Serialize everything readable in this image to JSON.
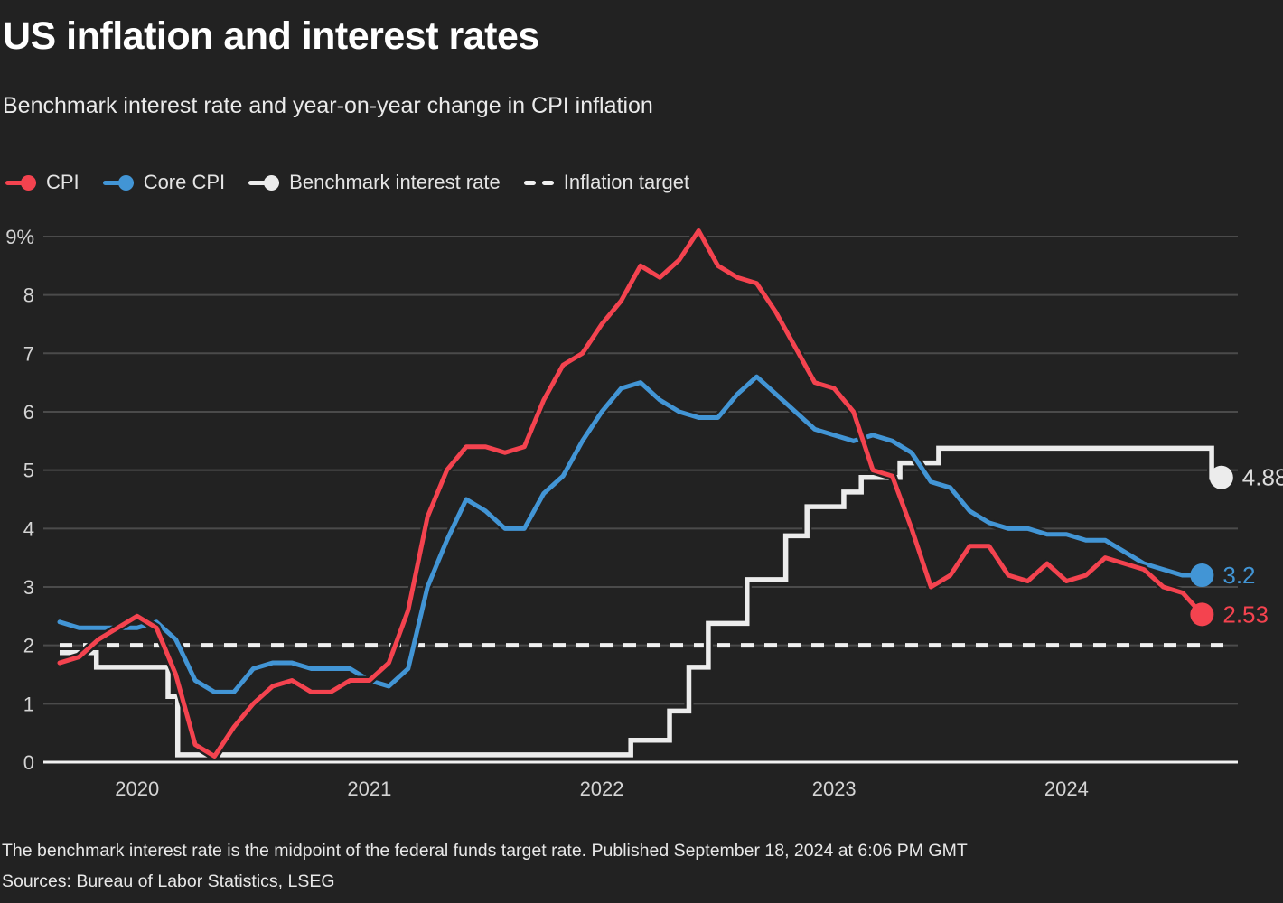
{
  "chart_data": {
    "type": "line",
    "title": "US inflation and interest rates",
    "subtitle": "Benchmark interest rate and year-on-year change in CPI inflation",
    "x_unit": "month",
    "x_range": [
      "Sep 2019",
      "Sep 2024"
    ],
    "ylim": [
      0,
      9
    ],
    "grid": true,
    "legend_position": "top",
    "x_ticks": [
      {
        "label": "2020",
        "t": 4
      },
      {
        "label": "2021",
        "t": 16
      },
      {
        "label": "2022",
        "t": 28
      },
      {
        "label": "2023",
        "t": 40
      },
      {
        "label": "2024",
        "t": 52
      }
    ],
    "y_ticks": [
      {
        "v": 0,
        "label": "0"
      },
      {
        "v": 1,
        "label": "1"
      },
      {
        "v": 2,
        "label": "2"
      },
      {
        "v": 3,
        "label": "3"
      },
      {
        "v": 4,
        "label": "4"
      },
      {
        "v": 5,
        "label": "5"
      },
      {
        "v": 6,
        "label": "6"
      },
      {
        "v": 7,
        "label": "7"
      },
      {
        "v": 8,
        "label": "8"
      },
      {
        "v": 9,
        "label": "9%"
      }
    ],
    "legend": {
      "items": [
        {
          "label": "CPI",
          "color": "#f4434f",
          "marker": "line-dot"
        },
        {
          "label": "Core CPI",
          "color": "#4295d5",
          "marker": "line-dot"
        },
        {
          "label": "Benchmark interest rate",
          "color": "#ececec",
          "marker": "line-dot"
        },
        {
          "label": "Inflation target",
          "color": "#f0f0f0",
          "marker": "dashes"
        }
      ]
    },
    "series": [
      {
        "name": "CPI",
        "type": "monthly",
        "start": "2019-09",
        "color": "#f4434f",
        "end_label": "2.53",
        "values": [
          1.7,
          1.8,
          2.1,
          2.3,
          2.5,
          2.3,
          1.5,
          0.3,
          0.1,
          0.6,
          1.0,
          1.3,
          1.4,
          1.2,
          1.2,
          1.4,
          1.4,
          1.7,
          2.6,
          4.2,
          5.0,
          5.4,
          5.4,
          5.3,
          5.4,
          6.2,
          6.8,
          7.0,
          7.5,
          7.9,
          8.5,
          8.3,
          8.6,
          9.1,
          8.5,
          8.3,
          8.2,
          7.7,
          7.1,
          6.5,
          6.4,
          6.0,
          5.0,
          4.9,
          4.0,
          3.0,
          3.2,
          3.7,
          3.7,
          3.2,
          3.1,
          3.4,
          3.1,
          3.2,
          3.5,
          3.4,
          3.3,
          3.0,
          2.9,
          2.53
        ]
      },
      {
        "name": "Core CPI",
        "type": "monthly",
        "start": "2019-09",
        "color": "#4295d5",
        "end_label": "3.2",
        "values": [
          2.4,
          2.3,
          2.3,
          2.3,
          2.3,
          2.4,
          2.1,
          1.4,
          1.2,
          1.2,
          1.6,
          1.7,
          1.7,
          1.6,
          1.6,
          1.6,
          1.4,
          1.3,
          1.6,
          3.0,
          3.8,
          4.5,
          4.3,
          4.0,
          4.0,
          4.6,
          4.9,
          5.5,
          6.0,
          6.4,
          6.5,
          6.2,
          6.0,
          5.9,
          5.9,
          6.3,
          6.6,
          6.3,
          6.0,
          5.7,
          5.6,
          5.5,
          5.6,
          5.5,
          5.3,
          4.8,
          4.7,
          4.3,
          4.1,
          4.0,
          4.0,
          3.9,
          3.9,
          3.8,
          3.8,
          3.6,
          3.4,
          3.3,
          3.2,
          3.2
        ]
      },
      {
        "name": "Benchmark interest rate",
        "type": "step",
        "color": "#ececec",
        "end_label": "4.88",
        "t_end": 60,
        "points": [
          {
            "t": 0,
            "v": 1.875
          },
          {
            "t": 1.9,
            "v": 1.625
          },
          {
            "t": 5.6,
            "v": 1.125
          },
          {
            "t": 6.1,
            "v": 0.125
          },
          {
            "t": 29.5,
            "v": 0.375
          },
          {
            "t": 31.5,
            "v": 0.875
          },
          {
            "t": 32.5,
            "v": 1.625
          },
          {
            "t": 33.5,
            "v": 2.375
          },
          {
            "t": 35.5,
            "v": 3.125
          },
          {
            "t": 37.5,
            "v": 3.875
          },
          {
            "t": 38.6,
            "v": 4.375
          },
          {
            "t": 40.5,
            "v": 4.625
          },
          {
            "t": 41.4,
            "v": 4.875
          },
          {
            "t": 43.4,
            "v": 5.125
          },
          {
            "t": 45.4,
            "v": 5.375
          },
          {
            "t": 59.5,
            "v": 4.875
          }
        ]
      },
      {
        "name": "Inflation target",
        "type": "reference",
        "color": "#f0f0f0",
        "value": 2
      }
    ]
  },
  "footer": {
    "note": "The benchmark interest rate is the midpoint of the federal funds target rate. Published September 18, 2024 at 6:06 PM GMT",
    "sources": "Sources: Bureau of Labor Statistics, LSEG"
  },
  "colors": {
    "background": "#222222",
    "grid": "#4b4b4b",
    "axis": "#f2f2f2",
    "tick_text": "#d4d4d4",
    "end_label_white": "#dcdcdc"
  }
}
